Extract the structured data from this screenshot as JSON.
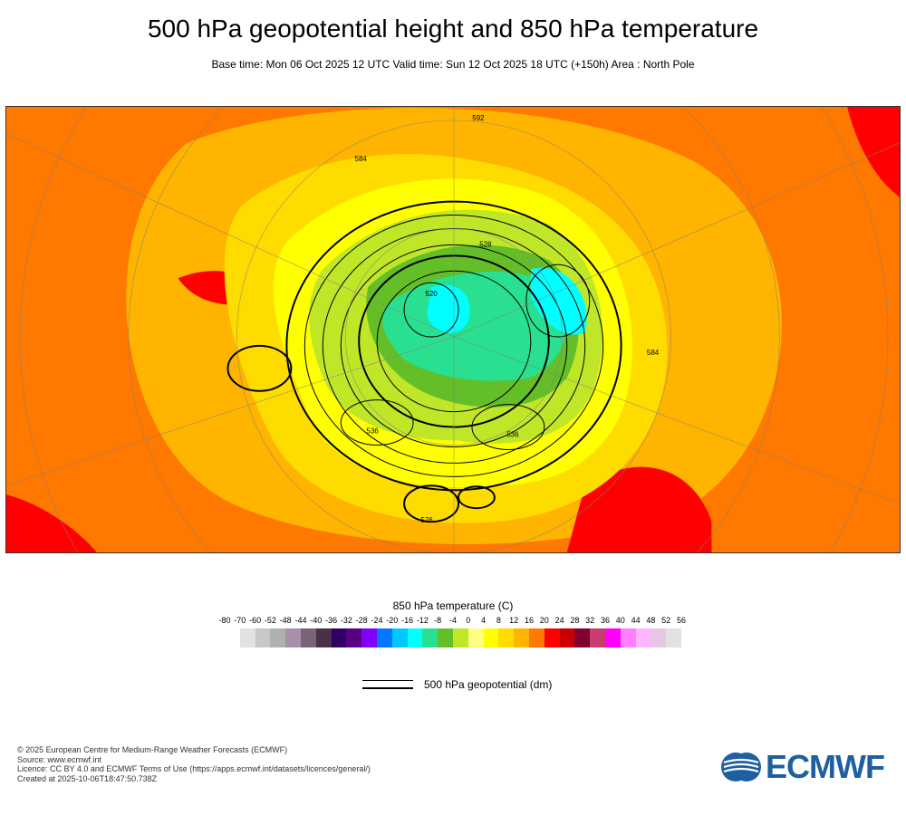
{
  "header": {
    "title": "500 hPa geopotential height and 850 hPa temperature",
    "subtitle": "Base time: Mon 06 Oct 2025 12 UTC Valid time: Sun 12 Oct 2025 18 UTC (+150h) Area : North Pole"
  },
  "map": {
    "projection": "polar stereographic",
    "area": "North Pole",
    "contour_labels": [
      "592",
      "584",
      "584",
      "528",
      "520",
      "536",
      "536",
      "576"
    ]
  },
  "colorbar": {
    "title": "850 hPa temperature (C)",
    "labels": [
      "-80",
      "-70",
      "-60",
      "-52",
      "-48",
      "-44",
      "-40",
      "-36",
      "-32",
      "-28",
      "-24",
      "-20",
      "-16",
      "-12",
      "-8",
      "-4",
      "0",
      "4",
      "8",
      "12",
      "16",
      "20",
      "24",
      "28",
      "32",
      "36",
      "40",
      "44",
      "48",
      "52",
      "56"
    ],
    "colors": [
      null,
      "#e2e2e2",
      "#c8c8c8",
      "#b0b0b0",
      "#a890a8",
      "#786478",
      "#483048",
      "#300064",
      "#580080",
      "#8000ff",
      "#0078ff",
      "#00c8ff",
      "#00ffff",
      "#28e090",
      "#64be28",
      "#c0e628",
      "#ffff80",
      "#ffff00",
      "#ffdc00",
      "#ffb400",
      "#ff7800",
      "#ff0000",
      "#c80000",
      "#800030",
      "#c83c6e",
      "#ff00ff",
      "#ff80ff",
      "#ffb4ff",
      "#e6c8e6",
      "#e2e2e2"
    ]
  },
  "line_legend": {
    "label": "500 hPa geopotential (dm)"
  },
  "footer": {
    "lines": [
      "© 2025 European Centre for Medium-Range Weather Forecasts (ECMWF)",
      "Source: www.ecmwf.int",
      "Licence: CC BY 4.0 and ECMWF Terms of Use (https://apps.ecmwf.int/datasets/licences/general/)",
      "Created at 2025-10-06T18:47:50.738Z"
    ]
  },
  "logo": {
    "text": "ECMWF",
    "color": "#1f5fa0"
  }
}
